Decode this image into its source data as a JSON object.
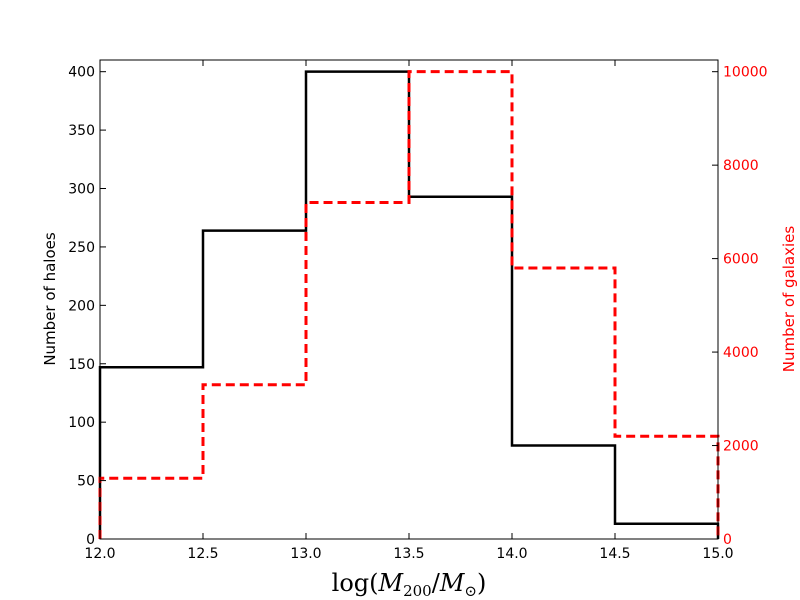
{
  "chart_data": {
    "type": "histogram-step",
    "x_ticks": [
      "12.0",
      "12.5",
      "13.0",
      "13.5",
      "14.0",
      "14.5",
      "15.0"
    ],
    "xlim": [
      12.0,
      15.0
    ],
    "xlabel_parts": {
      "pre": "log(",
      "M": "M",
      "sub200": "200",
      "slash": "/",
      "sunsub": "⊙",
      "post": ")"
    },
    "left_axis": {
      "label": "Number of haloes",
      "ylim": [
        0,
        410
      ],
      "ticks": [
        "0",
        "50",
        "100",
        "150",
        "200",
        "250",
        "300",
        "350",
        "400"
      ],
      "color": "#000000"
    },
    "right_axis": {
      "label": "Number of galaxies",
      "ylim": [
        0,
        10250
      ],
      "ticks": [
        "0",
        "2000",
        "4000",
        "6000",
        "8000",
        "10000"
      ],
      "color": "#ff0000"
    },
    "bins": [
      12.0,
      12.5,
      13.0,
      13.5,
      14.0,
      14.5,
      15.0
    ],
    "series": [
      {
        "axis": "left",
        "style": "solid",
        "color": "#000000",
        "values": [
          147,
          264,
          400,
          293,
          80,
          13
        ]
      },
      {
        "axis": "right",
        "style": "dashed",
        "color": "#ff0000",
        "values": [
          1300,
          3300,
          7200,
          10000,
          5800,
          2200
        ]
      }
    ]
  }
}
